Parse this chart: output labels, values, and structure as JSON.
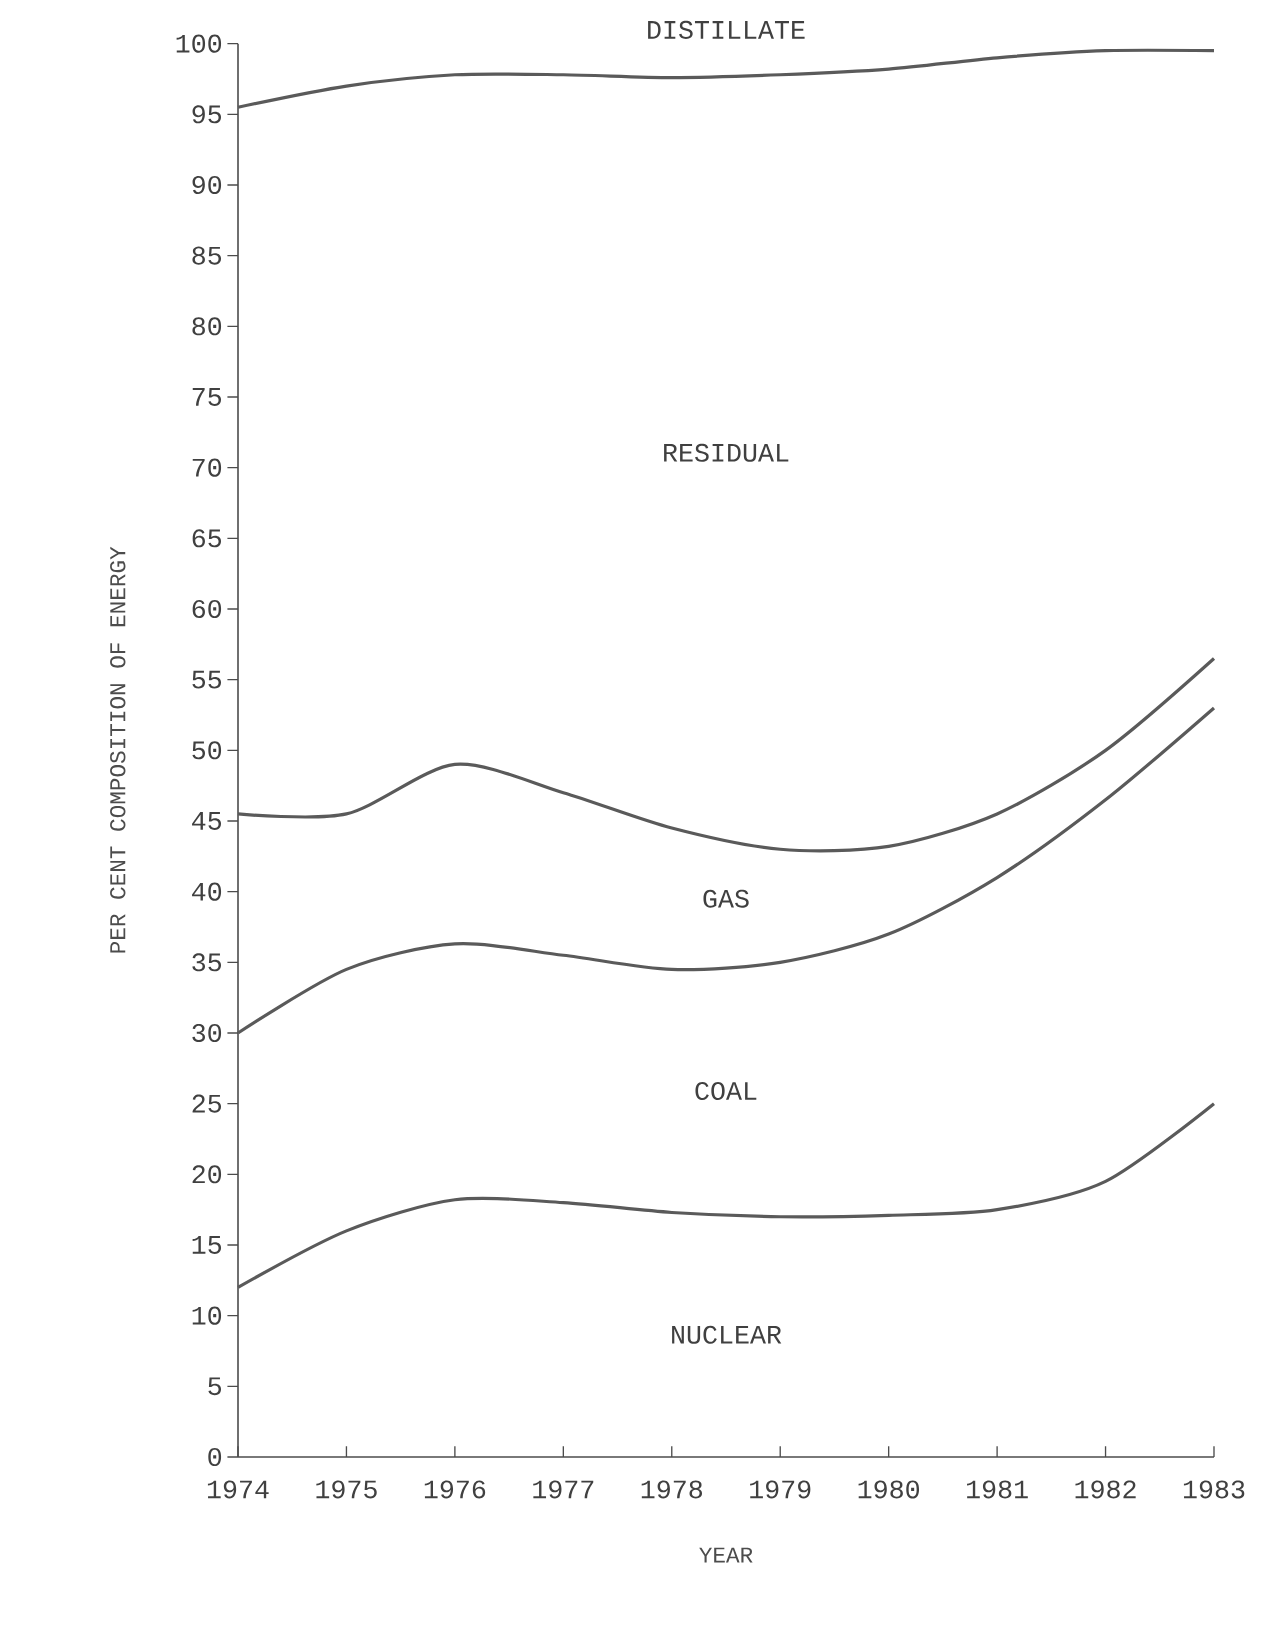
{
  "chart_data": {
    "type": "line",
    "xlabel": "YEAR",
    "ylabel": "PER CENT COMPOSITION OF ENERGY",
    "x": [
      1974,
      1975,
      1976,
      1977,
      1978,
      1979,
      1980,
      1981,
      1982,
      1983
    ],
    "series": [
      {
        "color": "#5a5a5a",
        "values": [
          95.5,
          97,
          97.8,
          97.8,
          97.6,
          97.8,
          98.2,
          99,
          99.5,
          99.5
        ]
      },
      {
        "color": "#5a5a5a",
        "values": [
          45.5,
          45.5,
          49,
          47,
          44.5,
          43,
          43.2,
          45.5,
          50,
          56.5
        ]
      },
      {
        "color": "#5a5a5a",
        "values": [
          30,
          34.5,
          36.3,
          35.5,
          34.5,
          35,
          37,
          41,
          46.5,
          53
        ]
      },
      {
        "color": "#5a5a5a",
        "values": [
          12,
          16,
          18.2,
          18,
          17.3,
          17,
          17.1,
          17.5,
          19.5,
          25
        ]
      }
    ],
    "annotations": [
      "DISTILLATE",
      "RESIDUAL",
      "GAS",
      "COAL",
      "NUCLEAR"
    ],
    "xlim": [
      1974,
      1983
    ],
    "ylim": [
      0,
      100
    ],
    "xticks": [
      1974,
      1975,
      1976,
      1977,
      1978,
      1979,
      1980,
      1981,
      1982,
      1983
    ],
    "yticks": [
      0,
      5,
      10,
      15,
      20,
      25,
      30,
      35,
      40,
      45,
      50,
      55,
      60,
      65,
      70,
      75,
      80,
      85,
      90,
      95,
      100
    ],
    "grid": false,
    "marker": "none",
    "line_style": "solid"
  }
}
